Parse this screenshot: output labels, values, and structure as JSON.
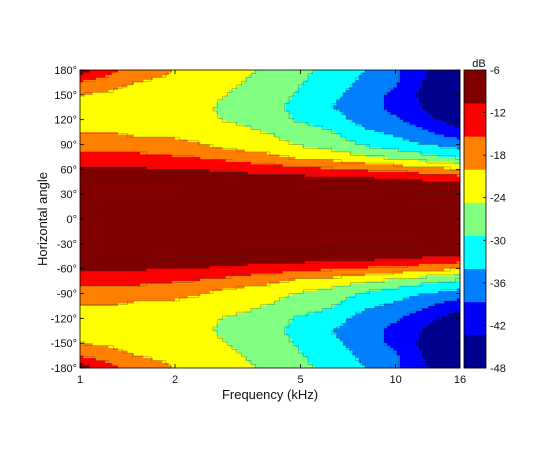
{
  "chart_data": {
    "type": "heatmap",
    "title": "",
    "xlabel": "Frequency (kHz)",
    "ylabel": "Horizontal angle",
    "x_scale": "log",
    "xlim": [
      1,
      16
    ],
    "ylim": [
      -180,
      180
    ],
    "x_ticks": [
      {
        "value": 1,
        "label": "1"
      },
      {
        "value": 2,
        "label": "2"
      },
      {
        "value": 5,
        "label": "5"
      },
      {
        "value": 10,
        "label": "10"
      },
      {
        "value": 16,
        "label": "16"
      }
    ],
    "y_ticks": [
      {
        "value": 180,
        "label": "180°"
      },
      {
        "value": 150,
        "label": "150°"
      },
      {
        "value": 120,
        "label": "120°"
      },
      {
        "value": 90,
        "label": "90°"
      },
      {
        "value": 60,
        "label": "60°"
      },
      {
        "value": 30,
        "label": "30°"
      },
      {
        "value": 0,
        "label": "0°"
      },
      {
        "value": -30,
        "label": "-30°"
      },
      {
        "value": -60,
        "label": "-60°"
      },
      {
        "value": -90,
        "label": "-90°"
      },
      {
        "value": -120,
        "label": "-120°"
      },
      {
        "value": -150,
        "label": "-150°"
      },
      {
        "value": -180,
        "label": "-180°"
      }
    ],
    "colorbar": {
      "label": "dB",
      "range": [
        -48,
        -6
      ],
      "ticks": [
        {
          "value": -6,
          "label": "-6"
        },
        {
          "value": -12,
          "label": "-12"
        },
        {
          "value": -18,
          "label": "-18"
        },
        {
          "value": -24,
          "label": "-24"
        },
        {
          "value": -30,
          "label": "-30"
        },
        {
          "value": -36,
          "label": "-36"
        },
        {
          "value": -42,
          "label": "-42"
        },
        {
          "value": -48,
          "label": "-48"
        }
      ],
      "colors": [
        "#00008f",
        "#0000ff",
        "#0080ff",
        "#00ffff",
        "#80ff80",
        "#ffff00",
        "#ff8000",
        "#ff0000",
        "#800000"
      ]
    },
    "contour_levels": [
      -6,
      -12,
      -18,
      -24,
      -30,
      -36,
      -42
    ],
    "frequencies_khz": [
      1,
      1.25,
      1.5,
      2,
      2.5,
      3,
      4,
      5,
      6.3,
      8,
      10,
      12.5,
      16
    ],
    "angles_deg": [
      0,
      15,
      30,
      45,
      60,
      75,
      90,
      105,
      120,
      135,
      150,
      165,
      180
    ],
    "levels_db": [
      [
        -2,
        -2,
        -2,
        -2,
        -2,
        -2,
        -2,
        -2,
        -2,
        -2,
        -2,
        -2,
        -2
      ],
      [
        -3,
        -3,
        -3,
        -3,
        -3,
        -3,
        -3,
        -3,
        -3,
        -3,
        -3,
        -3,
        -3
      ],
      [
        -3,
        -3,
        -3,
        -3,
        -4,
        -4,
        -4,
        -4,
        -4,
        -4,
        -4,
        -5,
        -5
      ],
      [
        -5,
        -5,
        -5,
        -5,
        -6,
        -6,
        -7,
        -7,
        -8,
        -8,
        -9,
        -10,
        -11
      ],
      [
        -10,
        -10,
        -10,
        -11,
        -11,
        -12,
        -13,
        -14,
        -15,
        -16,
        -17,
        -18,
        -20
      ],
      [
        -14,
        -14,
        -14,
        -15,
        -16,
        -17,
        -19,
        -21,
        -22,
        -24,
        -26,
        -28,
        -30
      ],
      [
        -17,
        -17,
        -18,
        -19,
        -20,
        -22,
        -23,
        -25,
        -27,
        -30,
        -32,
        -34,
        -36
      ],
      [
        -20,
        -20,
        -21,
        -21,
        -22,
        -23,
        -25,
        -27,
        -29,
        -33,
        -35,
        -38,
        -42
      ],
      [
        -22,
        -22,
        -22,
        -23,
        -24,
        -25,
        -27,
        -30,
        -32,
        -36,
        -38,
        -42,
        -46
      ],
      [
        -22,
        -23,
        -23,
        -24,
        -24,
        -26,
        -28,
        -31,
        -34,
        -37,
        -40,
        -44,
        -48
      ],
      [
        -20,
        -21,
        -22,
        -22,
        -23,
        -25,
        -27,
        -30,
        -33,
        -36,
        -40,
        -45,
        -48
      ],
      [
        -16,
        -18,
        -20,
        -21,
        -22,
        -24,
        -26,
        -29,
        -32,
        -35,
        -38,
        -44,
        -47
      ],
      [
        -8,
        -14,
        -18,
        -20,
        -22,
        -24,
        -25,
        -28,
        -31,
        -34,
        -38,
        -43,
        -46
      ]
    ]
  }
}
